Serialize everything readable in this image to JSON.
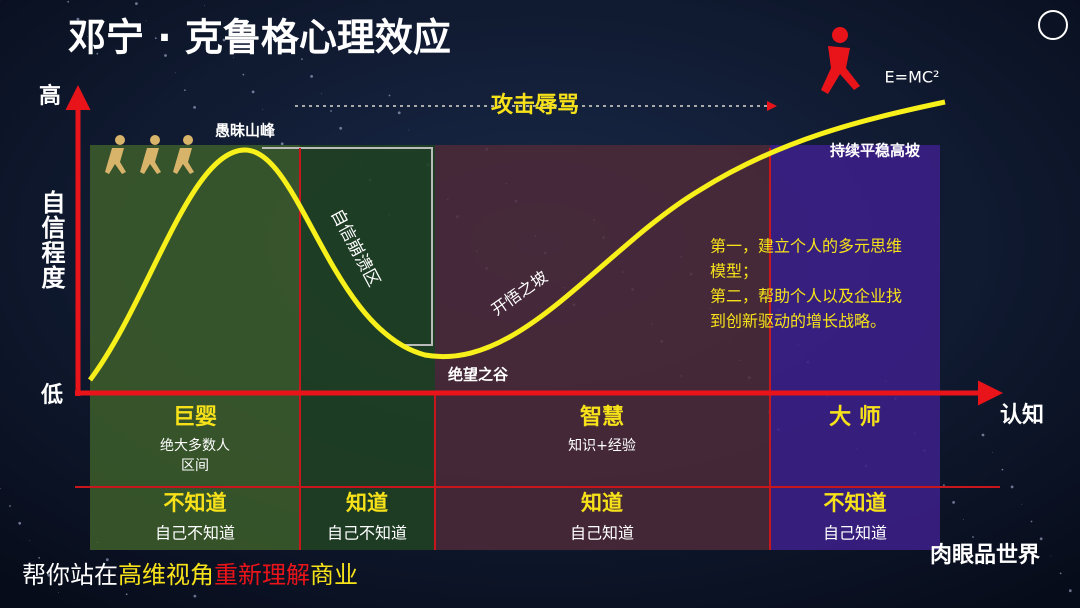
{
  "title": "邓宁 · 克鲁格心理效应",
  "axes": {
    "y_high": "高",
    "y_low": "低",
    "y_label": "自信程度",
    "x_label": "认知"
  },
  "annotations": {
    "equation": "E=MC²",
    "attack": "攻击辱骂",
    "peak": "愚昧山峰",
    "collapse": "自信崩溃区",
    "slope": "开悟之坡",
    "valley": "绝望之谷",
    "plateau": "持续平稳高坡",
    "note_lines": [
      "第一，建立个人的多元思维",
      "模型；",
      "第二，帮助个人以及企业找",
      "到创新驱动的增长战略。"
    ]
  },
  "zones": [
    {
      "name": "巨婴",
      "desc": [
        "绝大多数人",
        "区间"
      ],
      "state": "不知道",
      "sub": "自己不知道"
    },
    {
      "state": "知道",
      "sub": "自己不知道"
    },
    {
      "name": "智慧",
      "desc": [
        "知识+经验"
      ],
      "state": "知道",
      "sub": "自己知道"
    },
    {
      "name": "大 师",
      "state": "不知道",
      "sub": "自己知道"
    }
  ],
  "footer": [
    "帮你站在",
    "高维视角",
    "重新理解",
    "商业"
  ],
  "watermark": "肉眼品世界"
}
